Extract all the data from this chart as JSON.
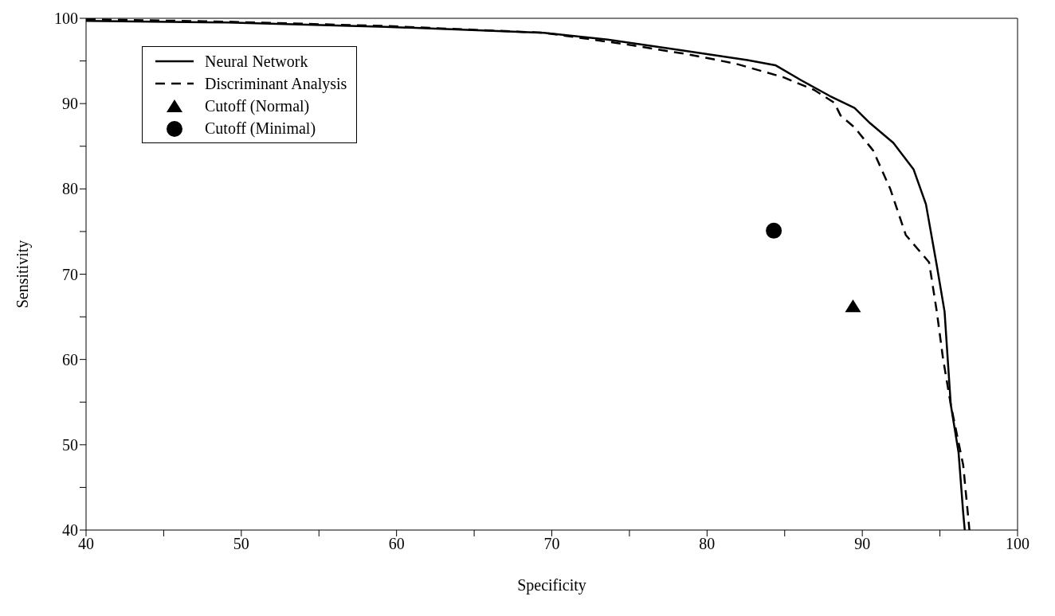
{
  "chart_data": {
    "type": "line",
    "xlabel": "Specificity",
    "ylabel": "Sensitivity",
    "xlim": [
      40,
      100
    ],
    "ylim": [
      40,
      100
    ],
    "xticks": [
      40,
      {
        "value": 45,
        "label": null
      },
      50,
      {
        "value": 55,
        "label": null
      },
      60,
      {
        "value": 65,
        "label": null
      },
      70,
      {
        "value": 75,
        "label": null
      },
      80,
      {
        "value": 85,
        "label": null
      },
      90,
      {
        "value": 95,
        "label": null
      },
      100
    ],
    "yticks": [
      40,
      {
        "value": 45,
        "label": null
      },
      50,
      {
        "value": 55,
        "label": null
      },
      60,
      {
        "value": 65,
        "label": null
      },
      70,
      {
        "value": 75,
        "label": null
      },
      80,
      {
        "value": 85,
        "label": null
      },
      90,
      {
        "value": 95,
        "label": null
      },
      100
    ],
    "grid": false,
    "legend": "top left",
    "marker": "none",
    "series": [
      {
        "name": "Neural Network",
        "line_style": "solid",
        "color": "#000000",
        "x": [
          40,
          49.1,
          59.3,
          69.5,
          73.6,
          78.2,
          82.6,
          84.4,
          86.1,
          87.9,
          89.5,
          90.5,
          92.0,
          93.3,
          94.1,
          94.8,
          95.3,
          95.5,
          95.7,
          96.2,
          96.5,
          96.6
        ],
        "values": [
          99.7,
          99.5,
          99.0,
          98.3,
          97.5,
          96.3,
          95.1,
          94.5,
          92.7,
          90.9,
          89.5,
          87.7,
          85.4,
          82.3,
          78.2,
          71.0,
          65.6,
          60.1,
          54.7,
          49.1,
          42.0,
          40
        ]
      },
      {
        "name": "Discriminant Analysis",
        "line_style": "dashed",
        "color": "#000000",
        "x": [
          40,
          49.1,
          59.3,
          69.5,
          74.6,
          78.7,
          81.8,
          84.9,
          86.9,
          88.2,
          88.6,
          89.5,
          90.7,
          91.8,
          92.8,
          94.3,
          94.8,
          95.2,
          95.7,
          96.5,
          96.9
        ],
        "values": [
          99.9,
          99.6,
          99.1,
          98.3,
          97.0,
          95.8,
          94.7,
          93.1,
          91.6,
          90.1,
          88.6,
          87.2,
          84.5,
          80.0,
          74.6,
          71.4,
          65.6,
          60.1,
          54.7,
          47.6,
          40
        ]
      },
      {
        "name": "Cutoff (Normal)",
        "type": "scatter",
        "marker": "triangle",
        "color": "#000000",
        "x": [
          89.4
        ],
        "values": [
          66.2
        ]
      },
      {
        "name": "Cutoff (Minimal)",
        "type": "scatter",
        "marker": "circle",
        "color": "#000000",
        "x": [
          84.3
        ],
        "values": [
          75.1
        ]
      }
    ]
  }
}
